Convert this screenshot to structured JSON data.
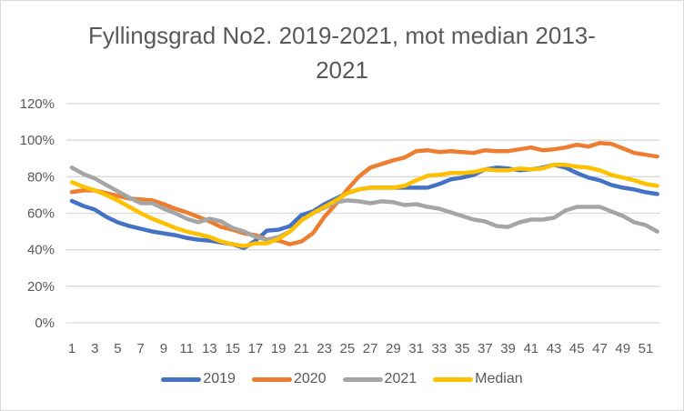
{
  "chart_data": {
    "type": "line",
    "title": "Fyllingsgrad No2. 2019-2021, mot median 2013-2021",
    "title_lines": [
      "Fyllingsgrad No2. 2019-2021, mot median 2013-",
      "2021"
    ],
    "xlabel": "",
    "ylabel": "",
    "ylim": [
      0,
      120
    ],
    "yticks": [
      "0%",
      "20%",
      "40%",
      "60%",
      "80%",
      "100%",
      "120%"
    ],
    "ytick_values": [
      0,
      20,
      40,
      60,
      80,
      100,
      120
    ],
    "x": [
      1,
      2,
      3,
      4,
      5,
      6,
      7,
      8,
      9,
      10,
      11,
      12,
      13,
      14,
      15,
      16,
      17,
      18,
      19,
      20,
      21,
      22,
      23,
      24,
      25,
      26,
      27,
      28,
      29,
      30,
      31,
      32,
      33,
      34,
      35,
      36,
      37,
      38,
      39,
      40,
      41,
      42,
      43,
      44,
      45,
      46,
      47,
      48,
      49,
      50,
      51,
      52
    ],
    "xticks": [
      "1",
      "3",
      "5",
      "7",
      "9",
      "11",
      "13",
      "15",
      "17",
      "19",
      "21",
      "23",
      "25",
      "27",
      "29",
      "31",
      "33",
      "35",
      "37",
      "39",
      "41",
      "43",
      "45",
      "47",
      "49",
      "51"
    ],
    "grid": true,
    "legend_position": "bottom",
    "series": [
      {
        "name": "2019",
        "color": "#4472C4",
        "values": [
          66.7,
          64,
          62,
          58,
          55,
          53,
          51.5,
          50,
          49,
          48,
          46.5,
          45.5,
          45,
          44,
          43,
          41,
          45,
          50.5,
          51,
          53,
          59,
          61,
          65,
          68,
          71,
          73,
          74,
          74,
          74,
          74,
          74,
          74,
          76,
          78.5,
          79.5,
          81,
          84,
          85,
          84.5,
          83.5,
          84,
          85,
          86.5,
          85,
          82,
          79.5,
          78,
          75.5,
          74,
          73,
          71.5,
          70.5
        ]
      },
      {
        "name": "2020",
        "color": "#ED7D31",
        "values": [
          71.6,
          72.5,
          72.5,
          71,
          69.5,
          68,
          67.5,
          67,
          65,
          62.5,
          60.5,
          58,
          55.5,
          52.5,
          51,
          49,
          48,
          45.5,
          45,
          43,
          44.5,
          49,
          58,
          65,
          73,
          80,
          85,
          87,
          89,
          90.5,
          94,
          94.5,
          93.5,
          94,
          93.5,
          93,
          94.5,
          94,
          94,
          95,
          96,
          94.5,
          95,
          96,
          97.5,
          96.5,
          98.5,
          98,
          95.5,
          93,
          92,
          91
        ]
      },
      {
        "name": "2021",
        "color": "#A5A5A5",
        "values": [
          85,
          81.5,
          79,
          75.5,
          72,
          68.5,
          65.5,
          65.5,
          62.5,
          60,
          57,
          55,
          57,
          55.5,
          52,
          50,
          47,
          45.5,
          47,
          50,
          56,
          60,
          63,
          66,
          67,
          66.5,
          65.5,
          66.5,
          66,
          64.5,
          65,
          63.5,
          62.5,
          60.5,
          58.5,
          56.5,
          55.5,
          53,
          52.5,
          55,
          56.5,
          56.5,
          57.5,
          61.5,
          63.5,
          63.5,
          63.5,
          61,
          58.5,
          55,
          53.5,
          50
        ]
      },
      {
        "name": "Median",
        "color": "#FFC000",
        "values": [
          77,
          74.5,
          72.5,
          70,
          67,
          63.5,
          60,
          57,
          54.5,
          52,
          50,
          48.5,
          47,
          44.5,
          43,
          42,
          43.5,
          43.5,
          46,
          50,
          56,
          60,
          63.5,
          67,
          71,
          73,
          74,
          74,
          74,
          75,
          78,
          80.5,
          81,
          82,
          82,
          82.5,
          84,
          83.5,
          83.5,
          84.5,
          84,
          84.5,
          86.5,
          86.5,
          85.5,
          85,
          83.5,
          81,
          79.5,
          78,
          76,
          75
        ]
      }
    ]
  }
}
